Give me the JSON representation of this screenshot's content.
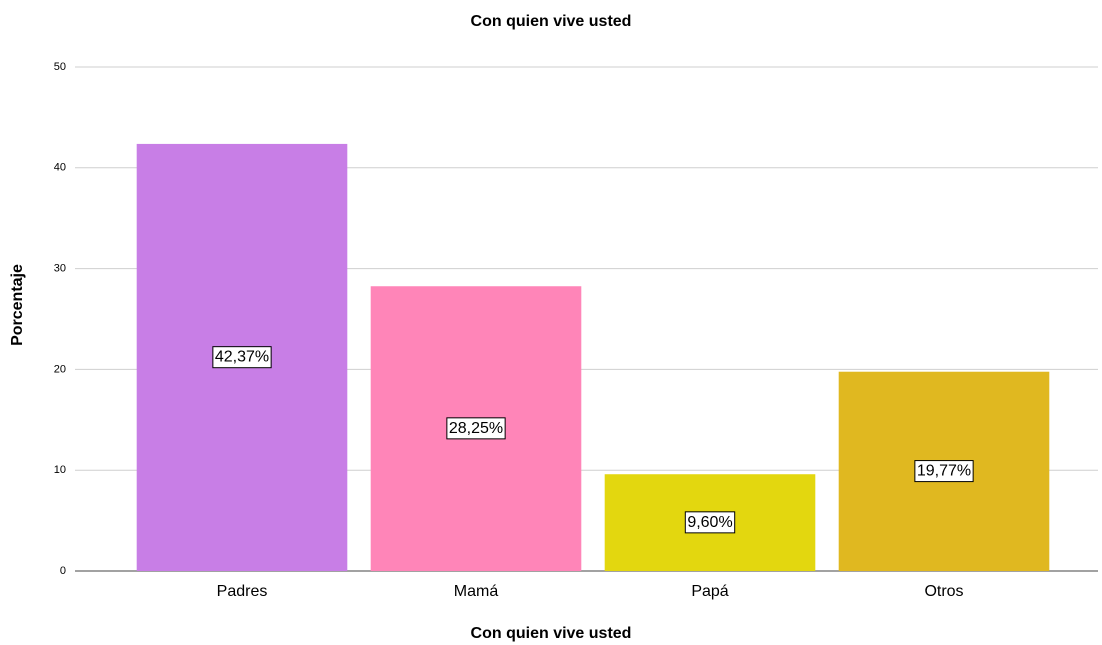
{
  "chart_data": {
    "type": "bar",
    "title": "Con quien vive usted",
    "x_label": "Con quien vive usted",
    "y_label": "Porcentaje",
    "categories": [
      "Padres",
      "Mamá",
      "Papá",
      "Otros"
    ],
    "values": [
      42.37,
      28.25,
      9.6,
      19.77
    ],
    "value_labels": [
      "42,37%",
      "28,25%",
      "9,60%",
      "19,77%"
    ],
    "colors": [
      "#c87ee6",
      "#ff85b8",
      "#e3d70f",
      "#e0b820"
    ],
    "ylim": [
      0,
      50
    ],
    "yticks": [
      0,
      10,
      20,
      30,
      40,
      50
    ],
    "grid": true
  }
}
